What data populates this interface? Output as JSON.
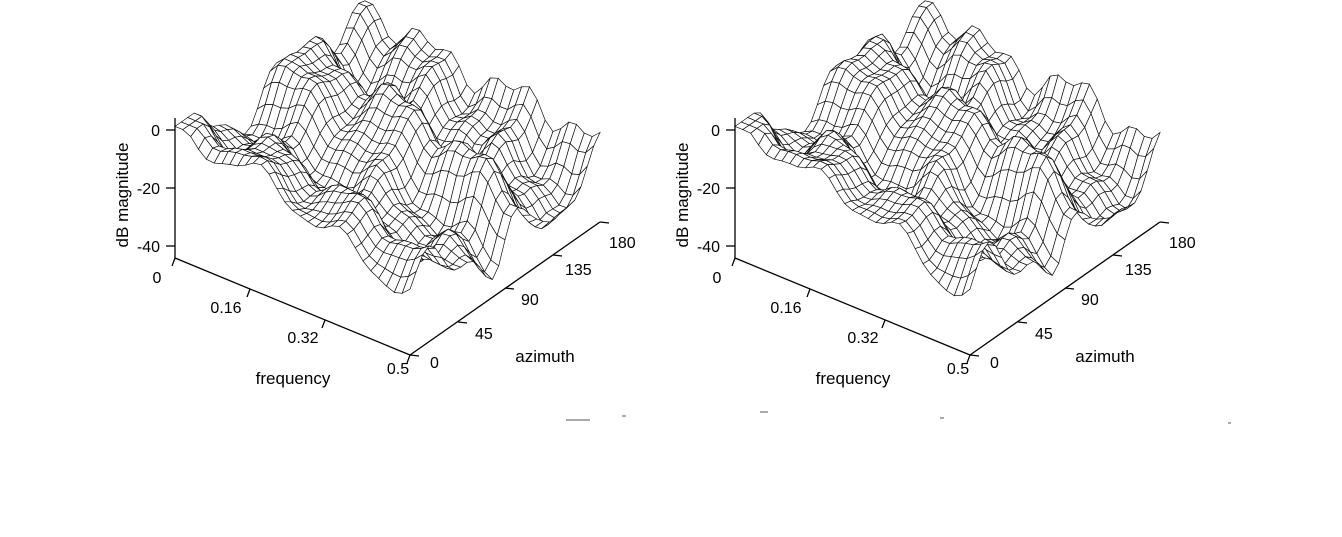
{
  "chart_data": [
    {
      "type": "surface",
      "title": "",
      "xlabel": "frequency",
      "ylabel": "azimuth",
      "zlabel": "dB magnitude",
      "x_ticks": [
        "0",
        "0.16",
        "0.32",
        "0.5"
      ],
      "y_ticks": [
        "0",
        "45",
        "90",
        "135",
        "180"
      ],
      "z_ticks": [
        "0",
        "-20",
        "-40"
      ],
      "xlim": [
        0,
        0.5
      ],
      "ylim": [
        0,
        180
      ],
      "zlim": [
        -45,
        5
      ],
      "grid_size": [
        30,
        30
      ],
      "style": "black mesh, white faces"
    },
    {
      "type": "surface",
      "title": "",
      "xlabel": "frequency",
      "ylabel": "azimuth",
      "zlabel": "dB magnitude",
      "x_ticks": [
        "0",
        "0.16",
        "0.32",
        "0.5"
      ],
      "y_ticks": [
        "0",
        "45",
        "90",
        "135",
        "180"
      ],
      "z_ticks": [
        "0",
        "-20",
        "-40"
      ],
      "xlim": [
        0,
        0.5
      ],
      "ylim": [
        0,
        180
      ],
      "zlim": [
        -45,
        5
      ],
      "grid_size": [
        30,
        30
      ],
      "style": "black mesh, white faces"
    }
  ]
}
